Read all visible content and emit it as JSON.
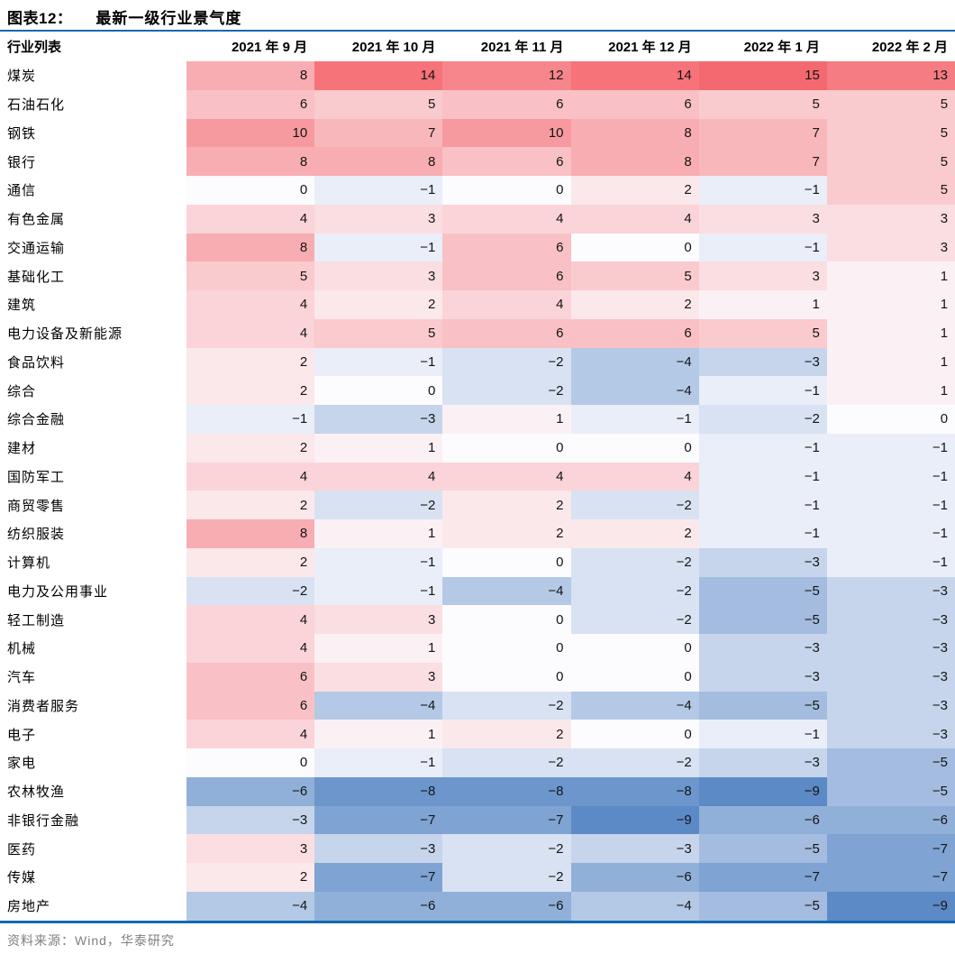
{
  "chart_data": {
    "type": "heatmap",
    "figure_label": "图表12：",
    "title": "最新一级行业景气度",
    "row_header": "行业列表",
    "columns": [
      "2021 年 9 月",
      "2021 年 10 月",
      "2021 年 11 月",
      "2021 年 12 月",
      "2022 年 1 月",
      "2022 年 2 月"
    ],
    "rows": [
      {
        "industry": "煤炭",
        "values": [
          8,
          14,
          12,
          14,
          15,
          13
        ]
      },
      {
        "industry": "石油石化",
        "values": [
          6,
          5,
          6,
          6,
          5,
          5
        ]
      },
      {
        "industry": "钢铁",
        "values": [
          10,
          7,
          10,
          8,
          7,
          5
        ]
      },
      {
        "industry": "银行",
        "values": [
          8,
          8,
          6,
          8,
          7,
          5
        ]
      },
      {
        "industry": "通信",
        "values": [
          0,
          -1,
          0,
          2,
          -1,
          5
        ]
      },
      {
        "industry": "有色金属",
        "values": [
          4,
          3,
          4,
          4,
          3,
          3
        ]
      },
      {
        "industry": "交通运输",
        "values": [
          8,
          -1,
          6,
          0,
          -1,
          3
        ]
      },
      {
        "industry": "基础化工",
        "values": [
          5,
          3,
          6,
          5,
          3,
          1
        ]
      },
      {
        "industry": "建筑",
        "values": [
          4,
          2,
          4,
          2,
          1,
          1
        ]
      },
      {
        "industry": "电力设备及新能源",
        "values": [
          4,
          5,
          6,
          6,
          5,
          1
        ]
      },
      {
        "industry": "食品饮料",
        "values": [
          2,
          -1,
          -2,
          -4,
          -3,
          1
        ]
      },
      {
        "industry": "综合",
        "values": [
          2,
          0,
          -2,
          -4,
          -1,
          1
        ]
      },
      {
        "industry": "综合金融",
        "values": [
          -1,
          -3,
          1,
          -1,
          -2,
          0
        ]
      },
      {
        "industry": "建材",
        "values": [
          2,
          1,
          0,
          0,
          -1,
          -1
        ]
      },
      {
        "industry": "国防军工",
        "values": [
          4,
          4,
          4,
          4,
          -1,
          -1
        ]
      },
      {
        "industry": "商贸零售",
        "values": [
          2,
          -2,
          2,
          -2,
          -1,
          -1
        ]
      },
      {
        "industry": "纺织服装",
        "values": [
          8,
          1,
          2,
          2,
          -1,
          -1
        ]
      },
      {
        "industry": "计算机",
        "values": [
          2,
          -1,
          0,
          -2,
          -3,
          -1
        ]
      },
      {
        "industry": "电力及公用事业",
        "values": [
          -2,
          -1,
          -4,
          -2,
          -5,
          -3
        ]
      },
      {
        "industry": "轻工制造",
        "values": [
          4,
          3,
          0,
          -2,
          -5,
          -3
        ]
      },
      {
        "industry": "机械",
        "values": [
          4,
          1,
          0,
          0,
          -3,
          -3
        ]
      },
      {
        "industry": "汽车",
        "values": [
          6,
          3,
          0,
          0,
          -3,
          -3
        ]
      },
      {
        "industry": "消费者服务",
        "values": [
          6,
          -4,
          -2,
          -4,
          -5,
          -3
        ]
      },
      {
        "industry": "电子",
        "values": [
          4,
          1,
          2,
          0,
          -1,
          -3
        ]
      },
      {
        "industry": "家电",
        "values": [
          0,
          -1,
          -2,
          -2,
          -3,
          -5
        ]
      },
      {
        "industry": "农林牧渔",
        "values": [
          -6,
          -8,
          -8,
          -8,
          -9,
          -5
        ]
      },
      {
        "industry": "非银行金融",
        "values": [
          -3,
          -7,
          -7,
          -9,
          -6,
          -6
        ]
      },
      {
        "industry": "医药",
        "values": [
          3,
          -3,
          -2,
          -3,
          -5,
          -7
        ]
      },
      {
        "industry": "传媒",
        "values": [
          2,
          -7,
          -2,
          -6,
          -7,
          -7
        ]
      },
      {
        "industry": "房地产",
        "values": [
          -4,
          -6,
          -6,
          -4,
          -5,
          -9
        ]
      }
    ],
    "colormap": {
      "zero_color": "#fcfbfe",
      "positive_max_color": "#f4696f",
      "negative_max_color": "#5b8ac6",
      "value_max": 15,
      "value_min": -9
    },
    "accent_rule_color": "#1268b3",
    "source": "资料来源：Wind，华泰研究",
    "xlabel": "",
    "ylabel": "",
    "legend": "none",
    "grid": false
  }
}
